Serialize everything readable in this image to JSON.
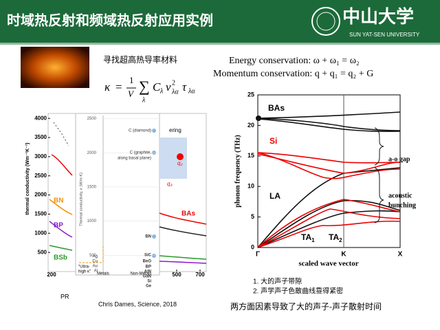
{
  "header": {
    "title": "时域热反射和频域热反射应用实例",
    "logo": "中山大学",
    "logo_sub": "SUN YAT-SEN UNIVERSITY"
  },
  "intro": {
    "caption": "寻找超高热导率材料"
  },
  "formula": {
    "lhs": "κ",
    "eq": "=",
    "num": "1",
    "den": "V",
    "sum": "∑",
    "sum_sub": "λ",
    "c": "C",
    "c_sub": "λ",
    "v": "v",
    "v_sup": "2",
    "v_sub": "λα",
    "tau": "τ",
    "tau_sub": "λα"
  },
  "conservation": [
    "Energy conservation:  ω + ω₁ = ω₂",
    "Momentum  conservation:  q + q₁ = q₂ + G"
  ],
  "left_figure": {
    "main": {
      "y_label": "thermal conductivity (Wm⁻¹K⁻¹)",
      "yticks": [
        500,
        1000,
        1500,
        2000,
        2500,
        3000,
        3500,
        4000
      ],
      "xticks": [
        200
      ],
      "labels": [
        "BN",
        "BP",
        "BSb"
      ]
    },
    "inset": {
      "y_label": "Thermal conductivity, κ (W/m·K)",
      "yticks": [
        500,
        1000,
        1500,
        2000,
        2500
      ],
      "materials": [
        "C (diamond)",
        "C (graphite,",
        "along basal plane)",
        "BN",
        "SiC",
        "BeO",
        "BP",
        "AlN",
        "GaN",
        "Si",
        "Ge"
      ],
      "metals": [
        "Ag",
        "Cu",
        "Au",
        "Al"
      ],
      "groups": [
        "Metals",
        "Non-Metals"
      ],
      "ultra": [
        "\"Ultra-",
        "high κ\""
      ],
      "partial": "ering"
    },
    "right": {
      "label": "BAs",
      "xticks": [
        500,
        700
      ],
      "q_labels": [
        "q₂",
        "q₃"
      ]
    },
    "pr": "PR",
    "credit": "Chris Dames, Science, 2018"
  },
  "right_figure": {
    "y_label": "phonon frequency (THz)",
    "yticks": [
      0,
      5,
      10,
      15,
      20,
      25
    ],
    "x_label": "scaled wave vector",
    "xticks": [
      "Γ",
      "K",
      "X"
    ],
    "labels": [
      "BAs",
      "Si",
      "LA"
    ],
    "ta": [
      {
        "text": "TA",
        "sub": "1"
      },
      {
        "text": "TA",
        "sub": "2"
      }
    ],
    "gap": "a-o gap",
    "bunching": [
      "acoustic",
      "bunching"
    ]
  },
  "notes": {
    "items": [
      "1. 大的声子带隙",
      "2. 声学声子色散曲线靠得紧密"
    ],
    "conclusion": "两方面因素导致了大的声子-声子散射时间"
  }
}
